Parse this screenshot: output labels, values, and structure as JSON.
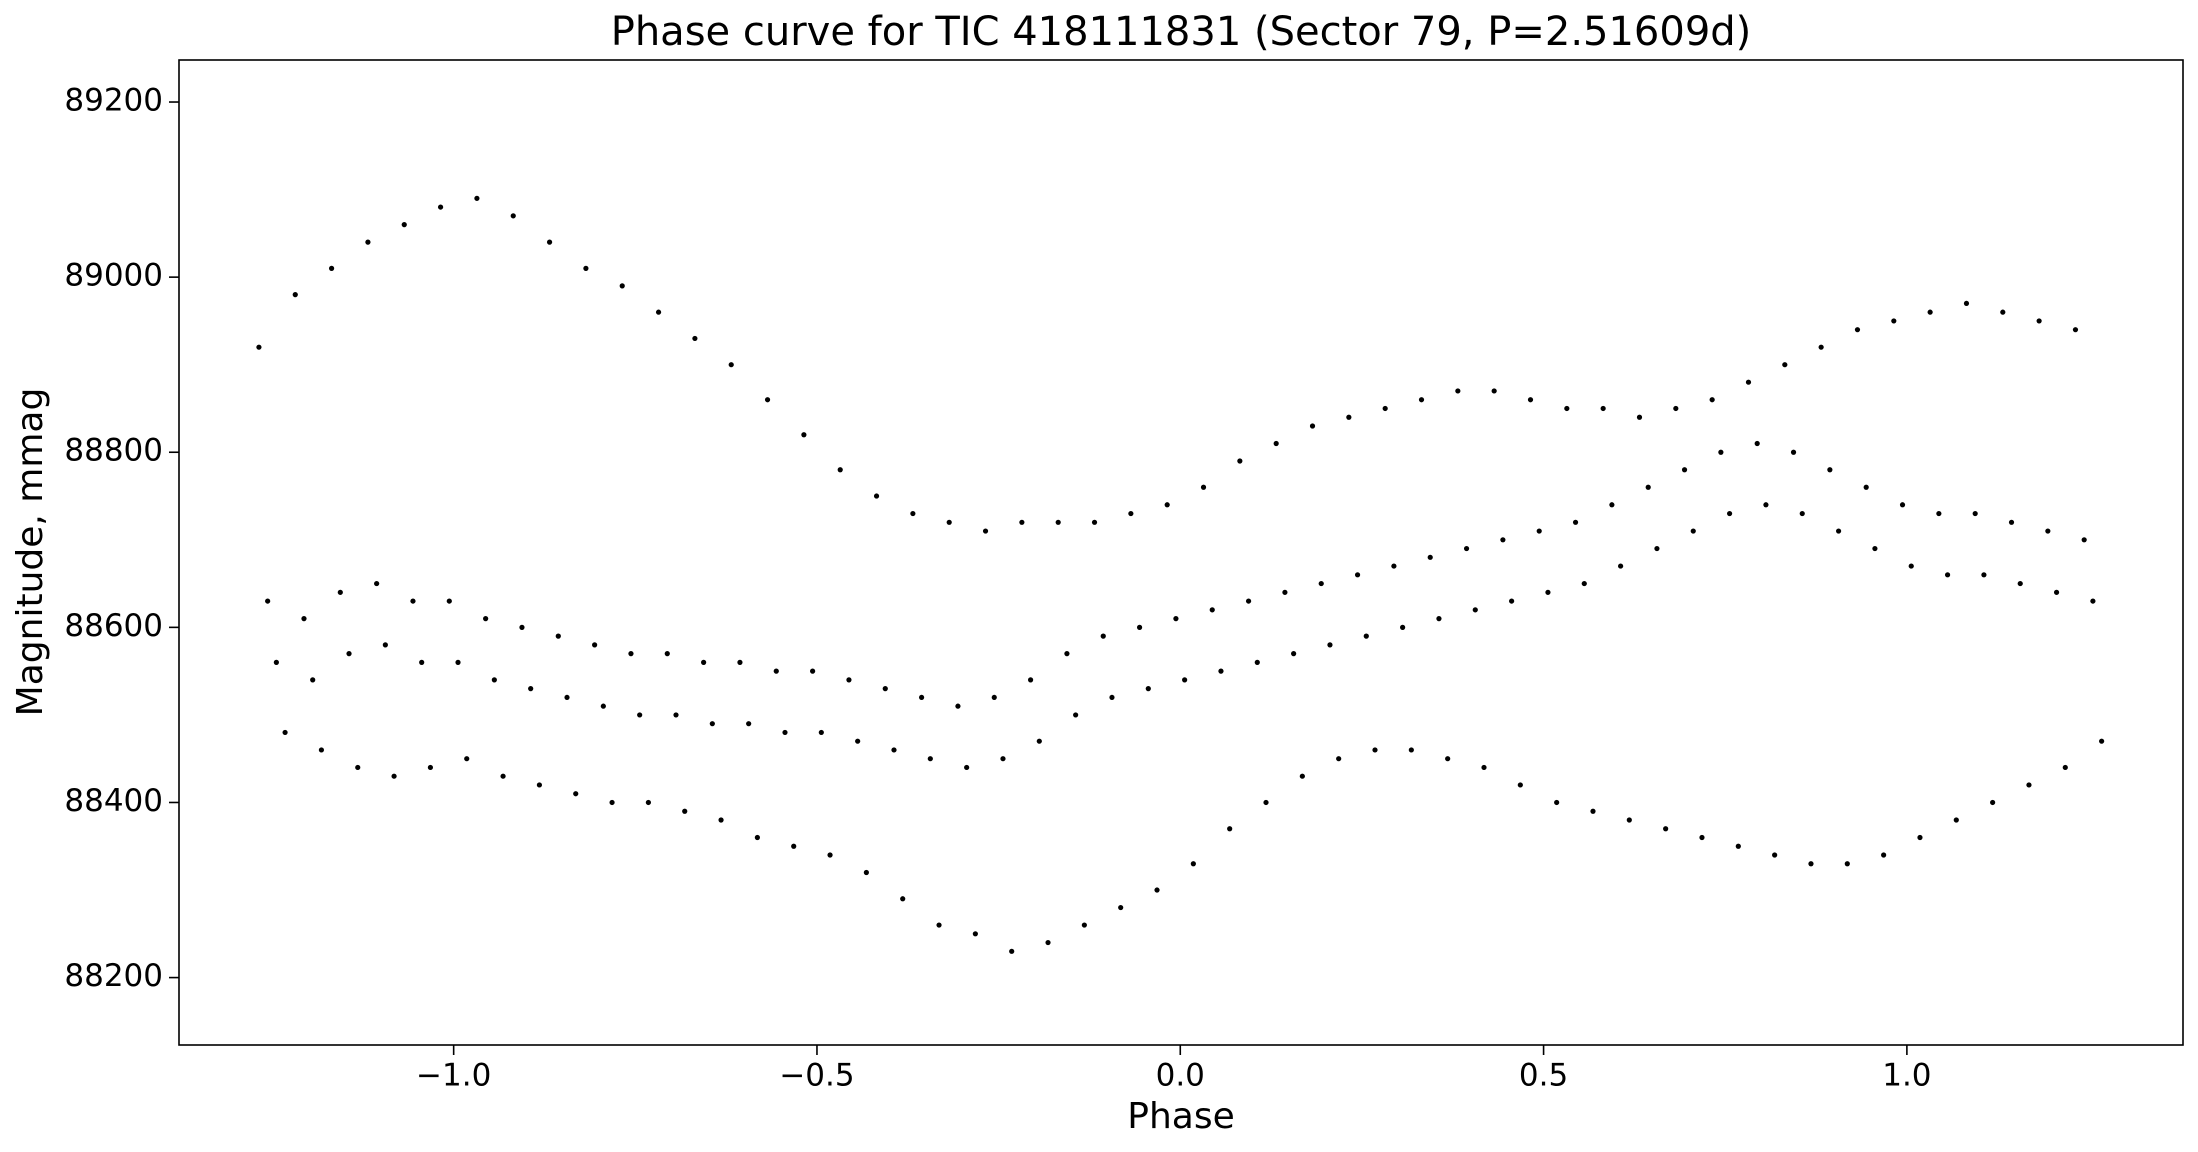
{
  "chart_data": {
    "type": "scatter",
    "title": "Phase curve for TIC 418111831 (Sector 79, P=2.51609d)",
    "xlabel": "Phase",
    "ylabel": "Magnitude, mmag",
    "color": "#000000",
    "xlim": [
      -1.378,
      1.38
    ],
    "ylim": [
      88123,
      89248
    ],
    "xticks": [
      {
        "value": -1.0,
        "label": "−1.0"
      },
      {
        "value": -0.5,
        "label": "−0.5"
      },
      {
        "value": 0.0,
        "label": "0.0"
      },
      0.5,
      {
        "value": 1.0,
        "label": "1.0"
      }
    ],
    "yticks": [
      88200,
      88400,
      88600,
      88800,
      89000,
      89200
    ],
    "grid": false,
    "x": [
      -1.268,
      -1.256,
      -1.244,
      -1.232,
      -1.218,
      -1.206,
      -1.194,
      -1.182,
      -1.168,
      -1.156,
      -1.144,
      -1.132,
      -1.118,
      -1.106,
      -1.094,
      -1.082,
      -1.068,
      -1.056,
      -1.044,
      -1.032,
      -1.018,
      -1.006,
      -0.994,
      -0.982,
      -0.968,
      -0.956,
      -0.944,
      -0.932,
      -0.918,
      -0.906,
      -0.894,
      -0.882,
      -0.868,
      -0.856,
      -0.844,
      -0.832,
      -0.818,
      -0.806,
      -0.794,
      -0.782,
      -0.768,
      -0.756,
      -0.744,
      -0.732,
      -0.718,
      -0.706,
      -0.694,
      -0.682,
      -0.668,
      -0.656,
      -0.644,
      -0.632,
      -0.618,
      -0.606,
      -0.594,
      -0.582,
      -0.568,
      -0.556,
      -0.544,
      -0.532,
      -0.518,
      -0.506,
      -0.494,
      -0.482,
      -0.468,
      -0.456,
      -0.444,
      -0.432,
      -0.418,
      -0.406,
      -0.394,
      -0.382,
      -0.368,
      -0.356,
      -0.344,
      -0.332,
      -0.318,
      -0.306,
      -0.294,
      -0.282,
      -0.268,
      -0.256,
      -0.244,
      -0.232,
      -0.218,
      -0.206,
      -0.194,
      -0.182,
      -0.168,
      -0.156,
      -0.144,
      -0.132,
      -0.118,
      -0.106,
      -0.094,
      -0.082,
      -0.068,
      -0.056,
      -0.044,
      -0.032,
      -0.018,
      -0.006,
      0.006,
      0.018,
      0.032,
      0.044,
      0.056,
      0.068,
      0.082,
      0.094,
      0.106,
      0.118,
      0.132,
      0.144,
      0.156,
      0.168,
      0.182,
      0.194,
      0.206,
      0.218,
      0.232,
      0.244,
      0.256,
      0.268,
      0.282,
      0.294,
      0.306,
      0.318,
      0.332,
      0.344,
      0.356,
      0.368,
      0.382,
      0.394,
      0.406,
      0.418,
      0.432,
      0.444,
      0.456,
      0.468,
      0.482,
      0.494,
      0.506,
      0.518,
      0.532,
      0.544,
      0.556,
      0.568,
      0.582,
      0.594,
      0.606,
      0.618,
      0.632,
      0.644,
      0.656,
      0.668,
      0.682,
      0.694,
      0.706,
      0.718,
      0.732,
      0.744,
      0.756,
      0.768,
      0.782,
      0.794,
      0.806,
      0.818,
      0.832,
      0.844,
      0.856,
      0.868,
      0.882,
      0.894,
      0.906,
      0.918,
      0.932,
      0.944,
      0.956,
      0.968,
      0.982,
      0.994,
      1.006,
      1.018,
      1.032,
      1.044,
      1.056,
      1.068,
      1.082,
      1.094,
      1.106,
      1.118,
      1.132,
      1.144,
      1.156,
      1.168,
      1.182,
      1.194,
      1.206,
      1.218,
      1.232,
      1.244,
      1.256,
      1.268
    ],
    "values": [
      88920,
      88630,
      88560,
      88480,
      88980,
      88610,
      88540,
      88460,
      89010,
      88640,
      88570,
      88440,
      89040,
      88650,
      88580,
      88430,
      89060,
      88630,
      88560,
      88440,
      89080,
      88630,
      88560,
      88450,
      89090,
      88610,
      88540,
      88430,
      89070,
      88600,
      88530,
      88420,
      89040,
      88590,
      88520,
      88410,
      89010,
      88580,
      88510,
      88400,
      88990,
      88570,
      88500,
      88400,
      88960,
      88570,
      88500,
      88390,
      88930,
      88560,
      88490,
      88380,
      88900,
      88560,
      88490,
      88360,
      88860,
      88550,
      88480,
      88350,
      88820,
      88550,
      88480,
      88340,
      88780,
      88540,
      88470,
      88320,
      88750,
      88530,
      88460,
      88290,
      88730,
      88520,
      88450,
      88260,
      88720,
      88510,
      88440,
      88250,
      88710,
      88520,
      88450,
      88230,
      88720,
      88540,
      88470,
      88240,
      88720,
      88570,
      88500,
      88260,
      88720,
      88590,
      88520,
      88280,
      88730,
      88600,
      88530,
      88300,
      88740,
      88610,
      88540,
      88330,
      88760,
      88620,
      88550,
      88370,
      88790,
      88630,
      88560,
      88400,
      88810,
      88640,
      88570,
      88430,
      88830,
      88650,
      88580,
      88450,
      88840,
      88660,
      88590,
      88460,
      88850,
      88670,
      88600,
      88460,
      88860,
      88680,
      88610,
      88450,
      88870,
      88690,
      88620,
      88440,
      88870,
      88700,
      88630,
      88420,
      88860,
      88710,
      88640,
      88400,
      88850,
      88720,
      88650,
      88390,
      88850,
      88740,
      88670,
      88380,
      88840,
      88760,
      88690,
      88370,
      88850,
      88780,
      88710,
      88360,
      88860,
      88800,
      88730,
      88350,
      88880,
      88810,
      88740,
      88340,
      88900,
      88800,
      88730,
      88330,
      88920,
      88780,
      88710,
      88330,
      88940,
      88760,
      88690,
      88340,
      88950,
      88740,
      88670,
      88360,
      88960,
      88730,
      88660,
      88380,
      88970,
      88730,
      88660,
      88400,
      88960,
      88720,
      88650,
      88420,
      88950,
      88710,
      88640,
      88440,
      88940,
      88700,
      88630,
      88470
    ]
  }
}
